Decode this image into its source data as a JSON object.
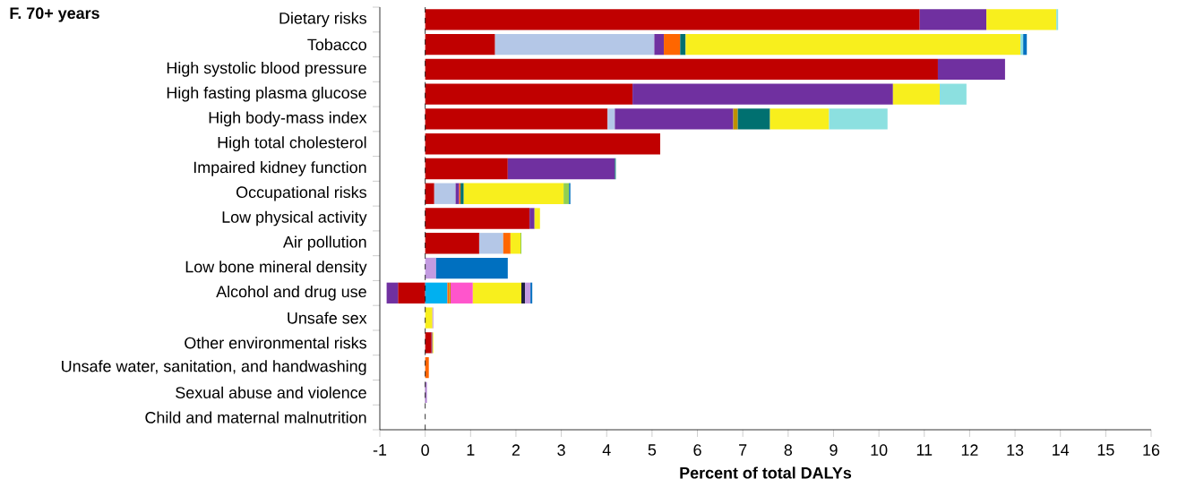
{
  "chart_data": {
    "type": "bar",
    "orientation": "horizontal",
    "stacked": true,
    "title": "F. 70+ years",
    "xlabel": "Percent of total DALYs",
    "categories": [
      "Dietary risks",
      "Tobacco",
      "High systolic blood pressure",
      "High fasting plasma glucose",
      "High body-mass index",
      "High total cholesterol",
      "Impaired kidney function",
      "Occupational risks",
      "Low physical activity",
      "Air pollution",
      "Low bone mineral density",
      "Alcohol and drug use",
      "Unsafe sex",
      "Other environmental risks",
      "Unsafe water, sanitation, and handwashing",
      "Sexual abuse and violence",
      "Child and maternal malnutrition"
    ],
    "series": [
      {
        "color": "#c00000",
        "values": [
          10.9,
          1.54,
          11.3,
          4.57,
          4.02,
          5.18,
          1.82,
          0.2,
          2.3,
          1.19,
          null,
          -0.6,
          null,
          0.14,
          null,
          null,
          null
        ]
      },
      {
        "color": "#b4c7e7",
        "values": [
          null,
          3.51,
          null,
          null,
          0.16,
          null,
          null,
          0.47,
          null,
          0.53,
          null,
          null,
          null,
          null,
          null,
          null,
          null
        ]
      },
      {
        "color": "#7030a0",
        "values": [
          1.47,
          0.21,
          1.48,
          5.74,
          2.61,
          null,
          2.36,
          0.08,
          0.11,
          null,
          null,
          -0.25,
          null,
          0.02,
          null,
          0.02,
          null
        ]
      },
      {
        "color": "#00b0f0",
        "values": [
          null,
          null,
          null,
          null,
          null,
          null,
          null,
          null,
          null,
          null,
          null,
          0.49,
          null,
          null,
          null,
          null,
          null
        ]
      },
      {
        "color": "#ff6600",
        "values": [
          null,
          0.36,
          null,
          null,
          null,
          null,
          null,
          0.03,
          null,
          0.16,
          null,
          0.04,
          null,
          null,
          0.08,
          null,
          null
        ]
      },
      {
        "color": "#bf9000",
        "values": [
          null,
          null,
          null,
          null,
          0.1,
          null,
          null,
          null,
          null,
          null,
          null,
          0.03,
          null,
          null,
          null,
          null,
          null
        ]
      },
      {
        "color": "#007070",
        "values": [
          null,
          0.12,
          null,
          null,
          0.71,
          null,
          0.02,
          0.07,
          null,
          null,
          null,
          null,
          null,
          null,
          null,
          null,
          null
        ]
      },
      {
        "color": "#ff55cc",
        "values": [
          null,
          null,
          null,
          null,
          null,
          null,
          null,
          null,
          null,
          null,
          null,
          0.49,
          null,
          null,
          null,
          null,
          null
        ]
      },
      {
        "color": "#f8ef1d",
        "values": [
          1.54,
          7.38,
          null,
          1.03,
          1.3,
          null,
          null,
          2.2,
          0.12,
          0.22,
          null,
          1.07,
          0.16,
          0.02,
          null,
          null,
          null
        ]
      },
      {
        "color": "#92d050",
        "values": [
          null,
          null,
          null,
          null,
          null,
          null,
          null,
          0.12,
          null,
          0.02,
          null,
          null,
          null,
          null,
          null,
          null,
          null
        ]
      },
      {
        "color": "#1f2040",
        "values": [
          null,
          null,
          null,
          null,
          null,
          null,
          null,
          null,
          null,
          null,
          null,
          0.08,
          null,
          null,
          null,
          null,
          null
        ]
      },
      {
        "color": "#c39be1",
        "values": [
          null,
          null,
          null,
          null,
          null,
          null,
          null,
          null,
          null,
          null,
          0.24,
          0.12,
          0.02,
          null,
          null,
          0.02,
          null
        ]
      },
      {
        "color": "#8ce0e0",
        "values": [
          0.04,
          0.06,
          null,
          0.59,
          1.29,
          null,
          null,
          null,
          null,
          null,
          null,
          null,
          null,
          null,
          null,
          null,
          null
        ]
      },
      {
        "color": "#0070c0",
        "values": [
          null,
          0.08,
          null,
          null,
          null,
          null,
          null,
          0.03,
          null,
          null,
          1.58,
          0.04,
          null,
          null,
          null,
          null,
          null
        ]
      }
    ],
    "xlim": [
      -1,
      16
    ],
    "xticks": [
      -1,
      0,
      1,
      2,
      3,
      4,
      5,
      6,
      7,
      8,
      9,
      10,
      11,
      12,
      13,
      14,
      15,
      16
    ],
    "ref_lines": [
      {
        "axis": "x",
        "value": 0,
        "line_style": "dashed",
        "color": "#000000"
      }
    ]
  }
}
